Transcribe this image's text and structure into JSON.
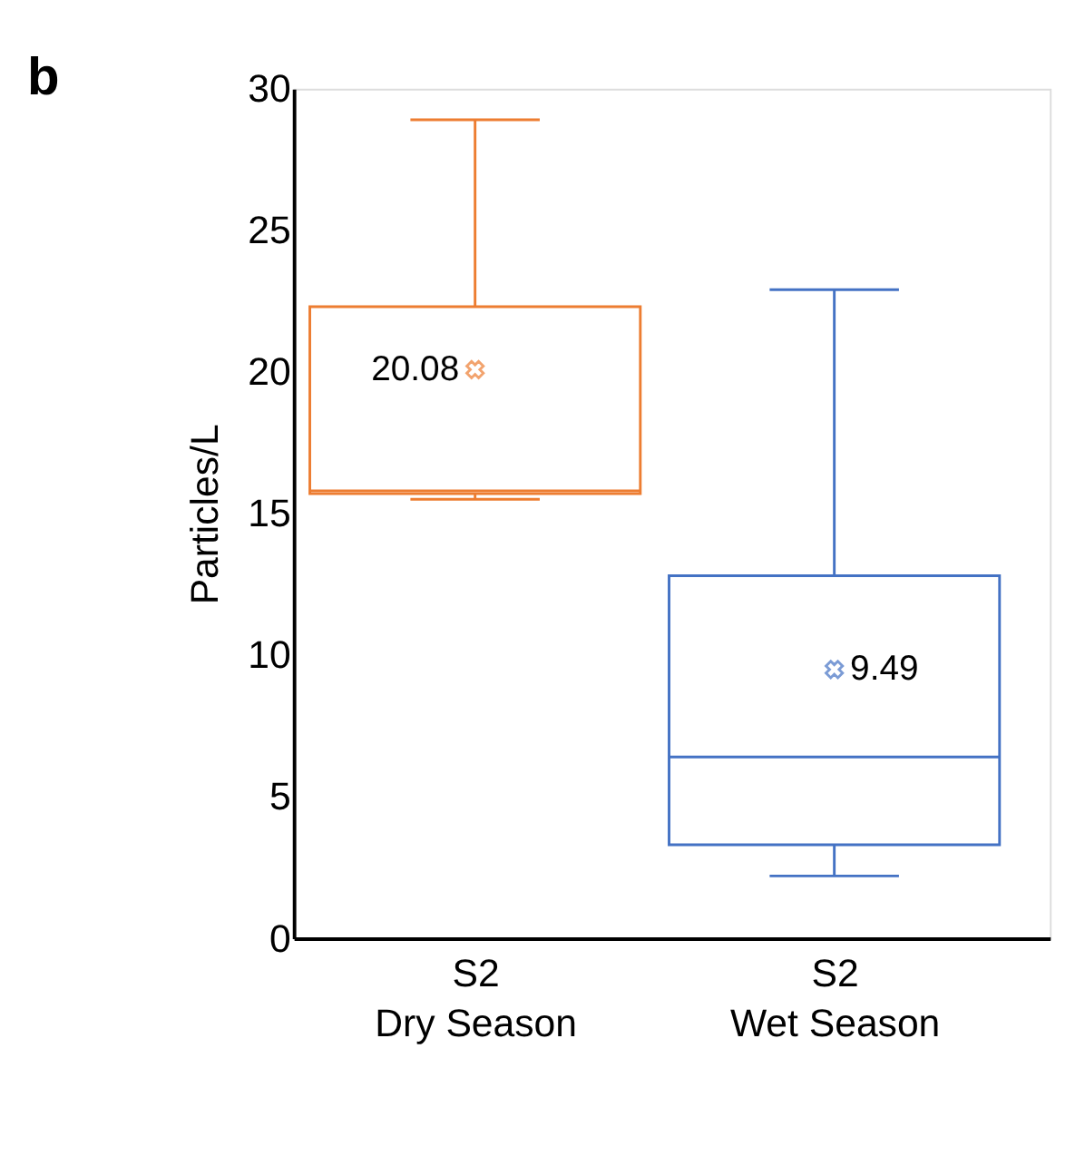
{
  "chart_data": {
    "type": "box",
    "title": "b",
    "ylabel": "Particles/L",
    "categories": [
      "S2\nDry Season",
      "S2\nWet Season"
    ],
    "boxes": [
      {
        "low": 15.5,
        "q1": 15.7,
        "median": 15.8,
        "q3": 22.3,
        "high": 28.9,
        "mean": 20.08
      },
      {
        "low": 2.2,
        "q1": 3.3,
        "median": 6.4,
        "q3": 12.8,
        "high": 22.9,
        "mean": 9.49
      }
    ],
    "colors": [
      "#ed7d31",
      "#4472c4"
    ],
    "ylim": [
      0,
      30
    ],
    "yticks": [
      0,
      5,
      10,
      15,
      20,
      25,
      30
    ],
    "grid": false,
    "marker": "cross",
    "annotations": [
      "20.08",
      "9.49"
    ]
  }
}
